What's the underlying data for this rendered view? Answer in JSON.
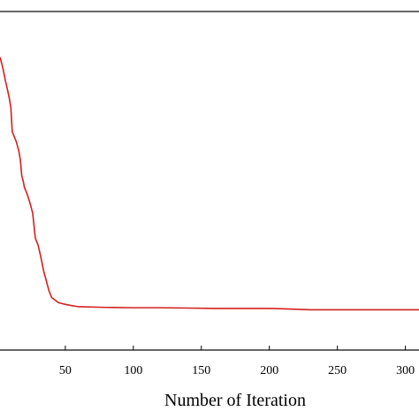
{
  "chart_data": {
    "type": "line",
    "title": "",
    "xlabel": "Number of Iteration",
    "ylabel": "",
    "xlim": [
      2,
      310
    ],
    "ylim": [
      0,
      1
    ],
    "x_ticks": [
      50,
      100,
      150,
      200,
      250,
      300
    ],
    "x_tick_labels": [
      "50",
      "100",
      "150",
      "200",
      "250",
      "300"
    ],
    "grid": false,
    "legend": "none",
    "line_color": "#d42020",
    "series": [
      {
        "x": [
          2,
          4,
          6,
          8,
          9,
          10,
          11,
          12,
          14,
          15,
          16,
          17,
          18,
          19,
          20,
          22,
          24,
          26,
          28,
          30,
          32,
          34,
          36,
          38,
          40,
          45,
          50,
          55,
          60,
          80,
          100,
          120,
          140,
          160,
          180,
          200,
          210,
          230,
          260,
          300,
          310
        ],
        "y": [
          0.865,
          0.835,
          0.795,
          0.76,
          0.74,
          0.715,
          0.645,
          0.635,
          0.615,
          0.6,
          0.585,
          0.56,
          0.515,
          0.5,
          0.48,
          0.46,
          0.435,
          0.405,
          0.33,
          0.31,
          0.275,
          0.235,
          0.205,
          0.175,
          0.155,
          0.14,
          0.135,
          0.131,
          0.128,
          0.126,
          0.125,
          0.125,
          0.124,
          0.123,
          0.123,
          0.123,
          0.122,
          0.119,
          0.119,
          0.119,
          0.119
        ]
      }
    ]
  }
}
